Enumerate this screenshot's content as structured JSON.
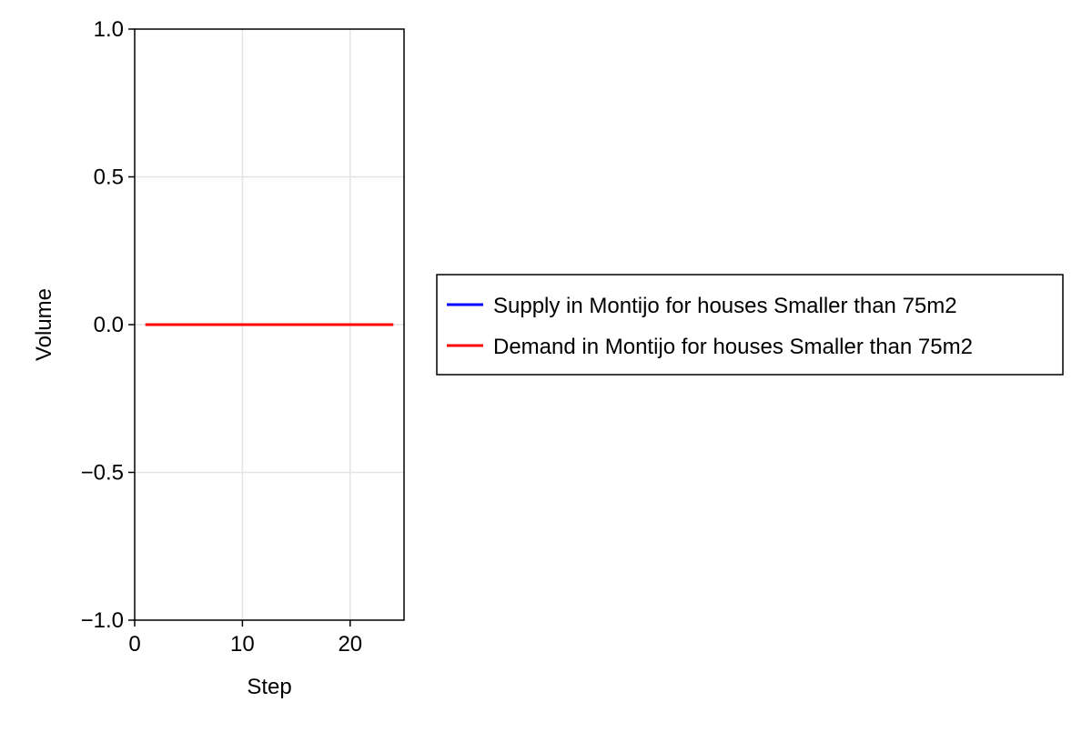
{
  "chart_data": {
    "type": "line",
    "title": "",
    "xlabel": "Step",
    "ylabel": "Volume",
    "xlim": [
      0,
      25
    ],
    "ylim": [
      -1.0,
      1.0
    ],
    "xticks": [
      0,
      10,
      20
    ],
    "xtick_labels": [
      "0",
      "10",
      "20"
    ],
    "yticks": [
      -1.0,
      -0.5,
      0.0,
      0.5,
      1.0
    ],
    "ytick_labels": [
      "−1.0",
      "−0.5",
      "0.0",
      "0.5",
      "1.0"
    ],
    "grid": true,
    "legend_position": "right",
    "series": [
      {
        "name": "Supply in Montijo for houses Smaller than 75m2",
        "color": "#0000ff",
        "x": [
          1,
          2,
          3,
          4,
          5,
          6,
          7,
          8,
          9,
          10,
          11,
          12,
          13,
          14,
          15,
          16,
          17,
          18,
          19,
          20,
          21,
          22,
          23,
          24
        ],
        "values": [
          0,
          0,
          0,
          0,
          0,
          0,
          0,
          0,
          0,
          0,
          0,
          0,
          0,
          0,
          0,
          0,
          0,
          0,
          0,
          0,
          0,
          0,
          0,
          0
        ]
      },
      {
        "name": "Demand in Montijo for houses Smaller than 75m2",
        "color": "#ff0000",
        "x": [
          1,
          2,
          3,
          4,
          5,
          6,
          7,
          8,
          9,
          10,
          11,
          12,
          13,
          14,
          15,
          16,
          17,
          18,
          19,
          20,
          21,
          22,
          23,
          24
        ],
        "values": [
          0,
          0,
          0,
          0,
          0,
          0,
          0,
          0,
          0,
          0,
          0,
          0,
          0,
          0,
          0,
          0,
          0,
          0,
          0,
          0,
          0,
          0,
          0,
          0
        ]
      }
    ]
  }
}
